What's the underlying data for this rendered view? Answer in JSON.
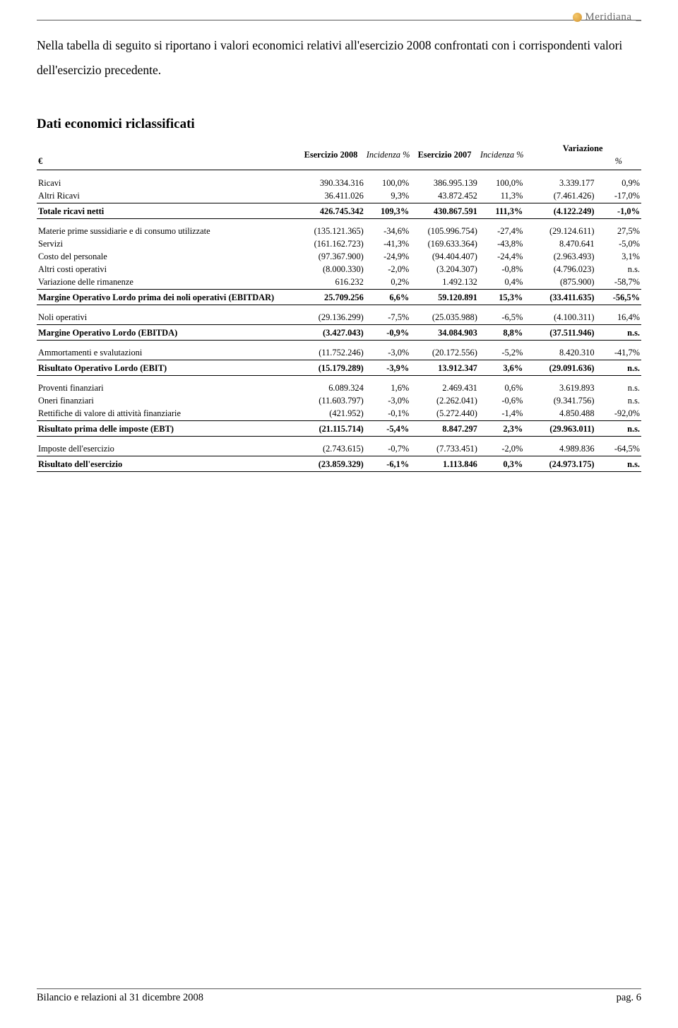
{
  "brand": {
    "name": "Meridiana",
    "tail": "_"
  },
  "intro": "Nella tabella di seguito si riportano i valori economici relativi all'esercizio 2008 confrontati con i corrispondenti valori dell'esercizio precedente.",
  "section_title": "Dati economici riclassificati",
  "currency": "€",
  "headers": {
    "ex2008": "Esercizio 2008",
    "inc": "Incidenza %",
    "ex2007": "Esercizio 2007",
    "var": "Variazione",
    "pct": "%"
  },
  "rows": [
    {
      "type": "gap"
    },
    {
      "label": "Ricavi",
      "v2008": "390.334.316",
      "p2008": "100,0%",
      "v2007": "386.995.139",
      "p2007": "100,0%",
      "var": "3.339.177",
      "pvar": "0,9%"
    },
    {
      "label": "Altri Ricavi",
      "v2008": "36.411.026",
      "p2008": "9,3%",
      "v2007": "43.872.452",
      "p2007": "11,3%",
      "var": "(7.461.426)",
      "pvar": "-17,0%"
    },
    {
      "type": "rule"
    },
    {
      "bold": true,
      "label": "Totale ricavi netti",
      "v2008": "426.745.342",
      "p2008": "109,3%",
      "v2007": "430.867.591",
      "p2007": "111,3%",
      "var": "(4.122.249)",
      "pvar": "-1,0%"
    },
    {
      "type": "rule"
    },
    {
      "type": "gap2"
    },
    {
      "label": "Materie prime sussidiarie e di consumo utilizzate",
      "v2008": "(135.121.365)",
      "p2008": "-34,6%",
      "v2007": "(105.996.754)",
      "p2007": "-27,4%",
      "var": "(29.124.611)",
      "pvar": "27,5%"
    },
    {
      "label": "Servizi",
      "v2008": "(161.162.723)",
      "p2008": "-41,3%",
      "v2007": "(169.633.364)",
      "p2007": "-43,8%",
      "var": "8.470.641",
      "pvar": "-5,0%"
    },
    {
      "label": "Costo del personale",
      "v2008": "(97.367.900)",
      "p2008": "-24,9%",
      "v2007": "(94.404.407)",
      "p2007": "-24,4%",
      "var": "(2.963.493)",
      "pvar": "3,1%"
    },
    {
      "label": "Altri costi operativi",
      "v2008": "(8.000.330)",
      "p2008": "-2,0%",
      "v2007": "(3.204.307)",
      "p2007": "-0,8%",
      "var": "(4.796.023)",
      "pvar": "n.s."
    },
    {
      "label": "Variazione delle rimanenze",
      "v2008": "616.232",
      "p2008": "0,2%",
      "v2007": "1.492.132",
      "p2007": "0,4%",
      "var": "(875.900)",
      "pvar": "-58,7%"
    },
    {
      "type": "rule"
    },
    {
      "bold": true,
      "label": "Margine Operativo Lordo prima dei noli operativi (EBITDAR)",
      "v2008": "25.709.256",
      "p2008": "6,6%",
      "v2007": "59.120.891",
      "p2007": "15,3%",
      "var": "(33.411.635)",
      "pvar": "-56,5%"
    },
    {
      "type": "rule"
    },
    {
      "type": "gap2"
    },
    {
      "label": "Noli operativi",
      "v2008": "(29.136.299)",
      "p2008": "-7,5%",
      "v2007": "(25.035.988)",
      "p2007": "-6,5%",
      "var": "(4.100.311)",
      "pvar": "16,4%"
    },
    {
      "type": "rule"
    },
    {
      "bold": true,
      "label": "Margine Operativo Lordo (EBITDA)",
      "v2008": "(3.427.043)",
      "p2008": "-0,9%",
      "v2007": "34.084.903",
      "p2007": "8,8%",
      "var": "(37.511.946)",
      "pvar": "n.s."
    },
    {
      "type": "rule"
    },
    {
      "type": "gap2"
    },
    {
      "label": "Ammortamenti e svalutazioni",
      "v2008": "(11.752.246)",
      "p2008": "-3,0%",
      "v2007": "(20.172.556)",
      "p2007": "-5,2%",
      "var": "8.420.310",
      "pvar": "-41,7%"
    },
    {
      "type": "rule"
    },
    {
      "bold": true,
      "label": "Risultato Operativo Lordo (EBIT)",
      "v2008": "(15.179.289)",
      "p2008": "-3,9%",
      "v2007": "13.912.347",
      "p2007": "3,6%",
      "var": "(29.091.636)",
      "pvar": "n.s."
    },
    {
      "type": "rule"
    },
    {
      "type": "gap2"
    },
    {
      "label": "Proventi finanziari",
      "v2008": "6.089.324",
      "p2008": "1,6%",
      "v2007": "2.469.431",
      "p2007": "0,6%",
      "var": "3.619.893",
      "pvar": "n.s."
    },
    {
      "label": "Oneri finanziari",
      "v2008": "(11.603.797)",
      "p2008": "-3,0%",
      "v2007": "(2.262.041)",
      "p2007": "-0,6%",
      "var": "(9.341.756)",
      "pvar": "n.s."
    },
    {
      "label": "Rettifiche di valore di attività finanziarie",
      "v2008": "(421.952)",
      "p2008": "-0,1%",
      "v2007": "(5.272.440)",
      "p2007": "-1,4%",
      "var": "4.850.488",
      "pvar": "-92,0%"
    },
    {
      "type": "rule"
    },
    {
      "bold": true,
      "label": "Risultato prima delle imposte (EBT)",
      "v2008": "(21.115.714)",
      "p2008": "-5,4%",
      "v2007": "8.847.297",
      "p2007": "2,3%",
      "var": "(29.963.011)",
      "pvar": "n.s."
    },
    {
      "type": "rule"
    },
    {
      "type": "gap2"
    },
    {
      "label": "Imposte dell'esercizio",
      "v2008": "(2.743.615)",
      "p2008": "-0,7%",
      "v2007": "(7.733.451)",
      "p2007": "-2,0%",
      "var": "4.989.836",
      "pvar": "-64,5%"
    },
    {
      "type": "rule"
    },
    {
      "bold": true,
      "label": "Risultato dell'esercizio",
      "v2008": "(23.859.329)",
      "p2008": "-6,1%",
      "v2007": "1.113.846",
      "p2007": "0,3%",
      "var": "(24.973.175)",
      "pvar": "n.s."
    },
    {
      "type": "rule"
    }
  ],
  "footer": {
    "left": "Bilancio e relazioni al 31 dicembre 2008",
    "right": "pag. 6"
  }
}
